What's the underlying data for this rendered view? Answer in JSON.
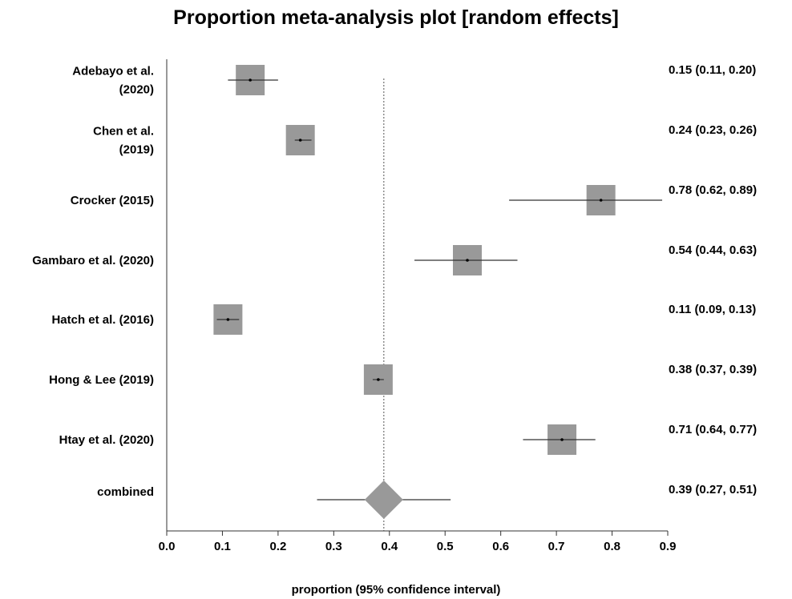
{
  "chart_data": {
    "type": "forest",
    "title": "Proportion meta-analysis plot [random effects]",
    "xlabel": "proportion (95% confidence interval)",
    "xlim": [
      0.0,
      0.9
    ],
    "xticks": [
      "0.0",
      "0.1",
      "0.2",
      "0.3",
      "0.4",
      "0.5",
      "0.6",
      "0.7",
      "0.8",
      "0.9"
    ],
    "reference_line": 0.39,
    "studies": [
      {
        "label_lines": [
          "Adebayo et al.",
          "(2020)"
        ],
        "estimate": 0.15,
        "ci": [
          0.11,
          0.2
        ],
        "ci_text": "0.15 (0.11, 0.20)",
        "ci_drawn": [
          0.11,
          0.2
        ]
      },
      {
        "label_lines": [
          "Chen et al.",
          "(2019)"
        ],
        "estimate": 0.24,
        "ci": [
          0.23,
          0.26
        ],
        "ci_text": "0.24 (0.23, 0.26)",
        "ci_drawn": [
          0.23,
          0.26
        ]
      },
      {
        "label_lines": [
          "Crocker (2015)"
        ],
        "estimate": 0.78,
        "ci": [
          0.62,
          0.89
        ],
        "ci_text": "0.78 (0.62, 0.89)",
        "ci_drawn": [
          0.615,
          0.89
        ]
      },
      {
        "label_lines": [
          "Gambaro et al. (2020)"
        ],
        "estimate": 0.54,
        "ci": [
          0.44,
          0.63
        ],
        "ci_text": "0.54 (0.44, 0.63)",
        "ci_drawn": [
          0.445,
          0.63
        ]
      },
      {
        "label_lines": [
          "Hatch et al. (2016)"
        ],
        "estimate": 0.11,
        "ci": [
          0.09,
          0.13
        ],
        "ci_text": "0.11 (0.09, 0.13)",
        "ci_drawn": [
          0.09,
          0.13
        ]
      },
      {
        "label_lines": [
          "Hong & Lee (2019)"
        ],
        "estimate": 0.38,
        "ci": [
          0.37,
          0.39
        ],
        "ci_text": "0.38 (0.37, 0.39)",
        "ci_drawn": [
          0.37,
          0.39
        ]
      },
      {
        "label_lines": [
          "Htay et al. (2020)"
        ],
        "estimate": 0.71,
        "ci": [
          0.64,
          0.77
        ],
        "ci_text": "0.71 (0.64, 0.77)",
        "ci_drawn": [
          0.64,
          0.77
        ]
      }
    ],
    "combined": {
      "label": "combined",
      "estimate": 0.39,
      "ci": [
        0.27,
        0.51
      ],
      "ci_text": "0.39 (0.27, 0.51)",
      "ci_drawn": [
        0.27,
        0.51
      ]
    },
    "colors": {
      "marker": "#999999",
      "line": "#333333",
      "axis": "#333333",
      "reference": "#555555"
    }
  }
}
